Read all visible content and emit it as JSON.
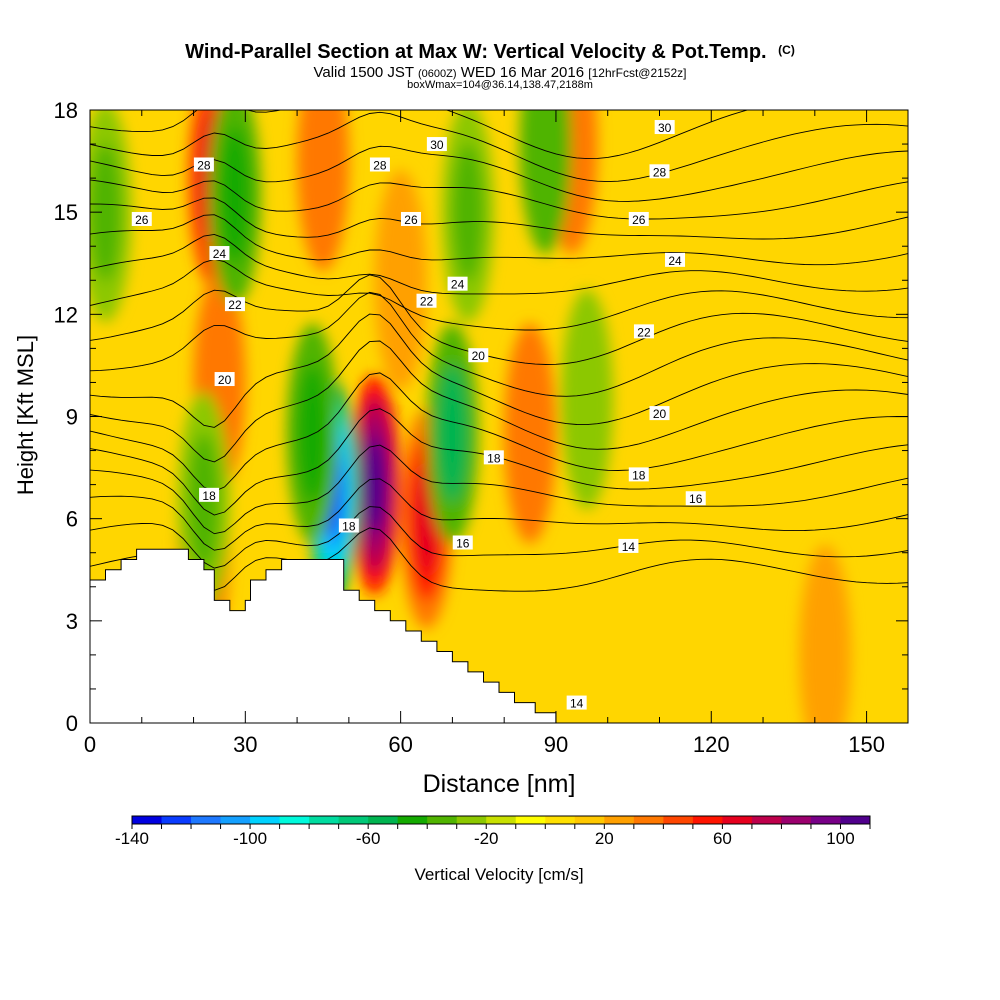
{
  "chart_data": {
    "type": "heatmap",
    "title": "Wind-Parallel Section at Max W: Vertical Velocity & Pot.Temp.",
    "title_mark": "(C)",
    "subtitle_parts": [
      "Valid 1500 JST",
      "(0600Z)",
      "WED 16 Mar 2016",
      "[12hrFcst@2152z]"
    ],
    "subsubtitle": "boxWmax=104@36.14,138.47,2188m",
    "xlabel": "Distance [nm]",
    "ylabel": "Height [Kft MSL]",
    "xlim": [
      0,
      158
    ],
    "ylim": [
      0,
      18
    ],
    "xticks": [
      0,
      30,
      60,
      90,
      120,
      150
    ],
    "yticks": [
      0,
      3,
      6,
      9,
      12,
      15,
      18
    ],
    "colorbar": {
      "label": "Vertical Velocity [cm/s]",
      "range": [
        -140,
        110
      ],
      "step": 10,
      "tick_values": [
        -140,
        -100,
        -60,
        -20,
        20,
        60,
        100
      ],
      "colors": [
        "#0000e0",
        "#0a3cff",
        "#1e78ff",
        "#14a0ff",
        "#00d2ff",
        "#00fadc",
        "#00dca0",
        "#00c878",
        "#00b450",
        "#14aa00",
        "#50b400",
        "#8cc800",
        "#c8e000",
        "#ffff00",
        "#ffe000",
        "#ffc800",
        "#ffa000",
        "#ff7800",
        "#ff4600",
        "#ff1400",
        "#e6001e",
        "#be004b",
        "#9b006e",
        "#780087",
        "#50008c"
      ]
    },
    "terrain_kft": [
      [
        0,
        4.2
      ],
      [
        3,
        4.2
      ],
      [
        3,
        4.5
      ],
      [
        6,
        4.5
      ],
      [
        6,
        4.8
      ],
      [
        9,
        4.8
      ],
      [
        9,
        5.1
      ],
      [
        19,
        5.1
      ],
      [
        19,
        4.8
      ],
      [
        22,
        4.8
      ],
      [
        22,
        4.5
      ],
      [
        24,
        4.5
      ],
      [
        24,
        3.6
      ],
      [
        27,
        3.6
      ],
      [
        27,
        3.3
      ],
      [
        30,
        3.3
      ],
      [
        30,
        3.6
      ],
      [
        31,
        3.6
      ],
      [
        31,
        4.2
      ],
      [
        34,
        4.2
      ],
      [
        34,
        4.5
      ],
      [
        37,
        4.5
      ],
      [
        37,
        4.8
      ],
      [
        49,
        4.8
      ],
      [
        49,
        3.9
      ],
      [
        52,
        3.9
      ],
      [
        52,
        3.6
      ],
      [
        55,
        3.6
      ],
      [
        55,
        3.3
      ],
      [
        58,
        3.3
      ],
      [
        58,
        3.0
      ],
      [
        61,
        3.0
      ],
      [
        61,
        2.7
      ],
      [
        64,
        2.7
      ],
      [
        64,
        2.4
      ],
      [
        67,
        2.4
      ],
      [
        67,
        2.1
      ],
      [
        70,
        2.1
      ],
      [
        70,
        1.8
      ],
      [
        73,
        1.8
      ],
      [
        73,
        1.5
      ],
      [
        76,
        1.5
      ],
      [
        76,
        1.2
      ],
      [
        79,
        1.2
      ],
      [
        79,
        0.9
      ],
      [
        82,
        0.9
      ],
      [
        82,
        0.6
      ],
      [
        86,
        0.6
      ],
      [
        86,
        0.3
      ],
      [
        90,
        0.3
      ],
      [
        90,
        0.3
      ]
    ],
    "updrafts": [
      {
        "x": 55,
        "z": 7.0,
        "w": 105
      },
      {
        "x": 65,
        "z": 6.0,
        "w": 65
      },
      {
        "x": 24,
        "z": 16.0,
        "w": 60
      },
      {
        "x": 45,
        "z": 16.5,
        "w": 35
      },
      {
        "x": 93,
        "z": 17.0,
        "w": 35
      },
      {
        "x": 85,
        "z": 8.5,
        "w": 30
      },
      {
        "x": 25,
        "z": 10.0,
        "w": 30
      },
      {
        "x": 22,
        "z": 5.2,
        "w": 30
      },
      {
        "x": 60,
        "z": 13.0,
        "w": 25
      },
      {
        "x": 142,
        "z": 2.0,
        "w": 25
      }
    ],
    "downdrafts": [
      {
        "x": 47,
        "z": 6.8,
        "w": -125
      },
      {
        "x": 70,
        "z": 8.5,
        "w": -55
      },
      {
        "x": 43,
        "z": 8.5,
        "w": -45
      },
      {
        "x": 28,
        "z": 15.5,
        "w": -45
      },
      {
        "x": 3,
        "z": 15.0,
        "w": -40
      },
      {
        "x": 73,
        "z": 15.0,
        "w": -40
      },
      {
        "x": 88,
        "z": 17.0,
        "w": -35
      },
      {
        "x": 96,
        "z": 9.5,
        "w": -30
      },
      {
        "x": 22,
        "z": 6.5,
        "w": -40
      }
    ],
    "theta_contours_c": [
      14,
      15,
      16,
      17,
      18,
      19,
      20,
      21,
      22,
      23,
      24,
      25,
      26,
      27,
      28,
      29,
      30,
      31
    ],
    "contour_labels": [
      {
        "text": "14",
        "x": 94,
        "z": 0.6
      },
      {
        "text": "14",
        "x": 104,
        "z": 5.2
      },
      {
        "text": "16",
        "x": 72,
        "z": 5.3
      },
      {
        "text": "16",
        "x": 117,
        "z": 6.6
      },
      {
        "text": "18",
        "x": 23,
        "z": 6.7
      },
      {
        "text": "18",
        "x": 50,
        "z": 5.8
      },
      {
        "text": "18",
        "x": 78,
        "z": 7.8
      },
      {
        "text": "18",
        "x": 106,
        "z": 7.3
      },
      {
        "text": "20",
        "x": 26,
        "z": 10.1
      },
      {
        "text": "20",
        "x": 75,
        "z": 10.8
      },
      {
        "text": "20",
        "x": 110,
        "z": 9.1
      },
      {
        "text": "22",
        "x": 28,
        "z": 12.3
      },
      {
        "text": "22",
        "x": 65,
        "z": 12.4
      },
      {
        "text": "22",
        "x": 107,
        "z": 11.5
      },
      {
        "text": "24",
        "x": 25,
        "z": 13.8
      },
      {
        "text": "24",
        "x": 71,
        "z": 12.9
      },
      {
        "text": "24",
        "x": 113,
        "z": 13.6
      },
      {
        "text": "26",
        "x": 10,
        "z": 14.8
      },
      {
        "text": "26",
        "x": 62,
        "z": 14.8
      },
      {
        "text": "26",
        "x": 106,
        "z": 14.8
      },
      {
        "text": "28",
        "x": 22,
        "z": 16.4
      },
      {
        "text": "28",
        "x": 56,
        "z": 16.4
      },
      {
        "text": "28",
        "x": 110,
        "z": 16.2
      },
      {
        "text": "30",
        "x": 67,
        "z": 17.0
      },
      {
        "text": "30",
        "x": 111,
        "z": 17.5
      }
    ]
  }
}
